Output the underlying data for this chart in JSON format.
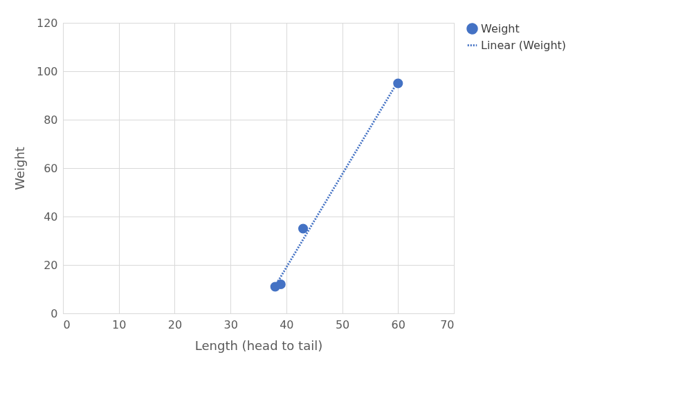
{
  "chart_data": {
    "type": "scatter",
    "xlabel": "Length (head to tail)",
    "ylabel": "Weight",
    "xlim": [
      0,
      70
    ],
    "xticks": [
      0,
      10,
      20,
      30,
      40,
      50,
      60,
      70
    ],
    "ylim": [
      0,
      120
    ],
    "yticks": [
      0,
      20,
      40,
      60,
      80,
      100,
      120
    ],
    "grid": true,
    "legend": "right",
    "marker": "circle",
    "series": [
      {
        "name": "Weight",
        "color": "#4472c4",
        "x": [
          38,
          39,
          43,
          60
        ],
        "values": [
          11,
          12,
          35,
          95
        ]
      },
      {
        "name": "Linear (Weight)",
        "type": "line",
        "line_style": "dotted",
        "marker": "none",
        "color": "#4472c4",
        "x": [
          38,
          60
        ],
        "values": [
          11.3,
          95.9
        ]
      }
    ]
  }
}
